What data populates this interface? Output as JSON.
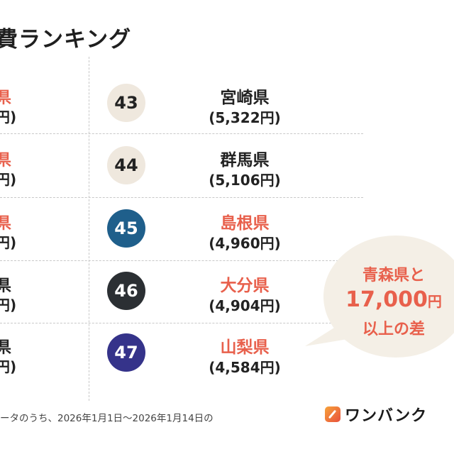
{
  "title": "費ランキング",
  "colors": {
    "accent": "#e8604c",
    "beige": "#efe8de",
    "blue": "#1f5f8b",
    "dark": "#2b2f33",
    "indigo": "#35338a",
    "bubble": "#f4efe6"
  },
  "left_column": [
    {
      "name": "県",
      "price": "円)",
      "highlight": true
    },
    {
      "name": "県",
      "price": "円)",
      "highlight": true
    },
    {
      "name": "県",
      "price": "円)",
      "highlight": true
    },
    {
      "name": "県",
      "price": "円)",
      "highlight": false
    },
    {
      "name": "県",
      "price": "円)",
      "highlight": false
    }
  ],
  "right_column": [
    {
      "rank": "43",
      "name": "宮崎県",
      "price": "(5,322円)",
      "highlight": false,
      "badge_color": "#efe8de"
    },
    {
      "rank": "44",
      "name": "群馬県",
      "price": "(5,106円)",
      "highlight": false,
      "badge_color": "#efe8de"
    },
    {
      "rank": "45",
      "name": "島根県",
      "price": "(4,960円)",
      "highlight": true,
      "badge_color": "#1f5f8b"
    },
    {
      "rank": "46",
      "name": "大分県",
      "price": "(4,904円)",
      "highlight": true,
      "badge_color": "#2b2f33"
    },
    {
      "rank": "47",
      "name": "山梨県",
      "price": "(4,584円)",
      "highlight": true,
      "badge_color": "#35338a"
    }
  ],
  "callout": {
    "line1": "青森県と",
    "amount": "17,000",
    "unit": "円",
    "line3": "以上の差"
  },
  "footnote": "ータのうち、2026年1月1日〜2026年1月14日の",
  "logo": {
    "text": "ワンバンク"
  }
}
